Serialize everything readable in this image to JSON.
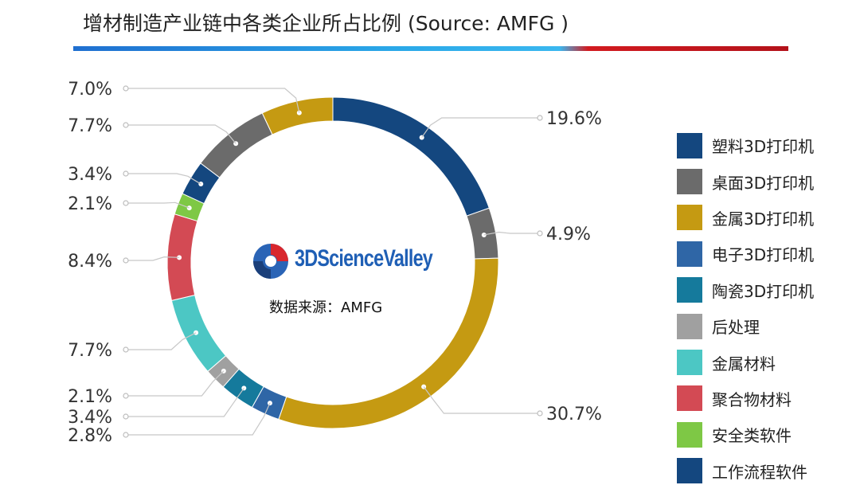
{
  "title": "增材制造产业链中各类企业所占比例 (Source: AMFG )",
  "center_caption": "数据来源：AMFG",
  "logo_text": "3DScienceValley",
  "chart_data": {
    "type": "pie",
    "subtype": "donut",
    "title": "增材制造产业链中各类企业所占比例 (Source: AMFG )",
    "legend_position": "right",
    "slices": [
      {
        "label": "塑料3D打印机",
        "value": 19.6,
        "value_label": "19.6%",
        "color": "#14477f"
      },
      {
        "label": "桌面3D打印机",
        "value": 4.9,
        "value_label": "4.9%",
        "color": "#6b6b6b"
      },
      {
        "label": "金属3D打印机",
        "value": 30.7,
        "value_label": "30.7%",
        "color": "#c59a12"
      },
      {
        "label": "电子3D打印机",
        "value": 2.8,
        "value_label": "2.8%",
        "color": "#2f66a6"
      },
      {
        "label": "陶瓷3D打印机",
        "value": 3.4,
        "value_label": "3.4%",
        "color": "#157a9c"
      },
      {
        "label": "后处理",
        "value": 2.1,
        "value_label": "2.1%",
        "color": "#a0a0a0"
      },
      {
        "label": "金属材料",
        "value": 7.7,
        "value_label": "7.7%",
        "color": "#4cc7c4"
      },
      {
        "label": "聚合物材料",
        "value": 8.4,
        "value_label": "8.4%",
        "color": "#d34a54"
      },
      {
        "label": "安全类软件",
        "value": 2.1,
        "value_label": "2.1%",
        "color": "#7ec845"
      },
      {
        "label": "工作流程软件",
        "value": 3.4,
        "value_label": "3.4%",
        "color": "#14477f"
      },
      {
        "label": "桌面3D打印机",
        "value": 7.7,
        "value_label": "7.7%",
        "color": "#6b6b6b",
        "in_legend": false
      },
      {
        "label": "金属3D打印机",
        "value": 7.0,
        "value_label": "7.0%",
        "color": "#c59a12",
        "in_legend": false
      }
    ]
  }
}
